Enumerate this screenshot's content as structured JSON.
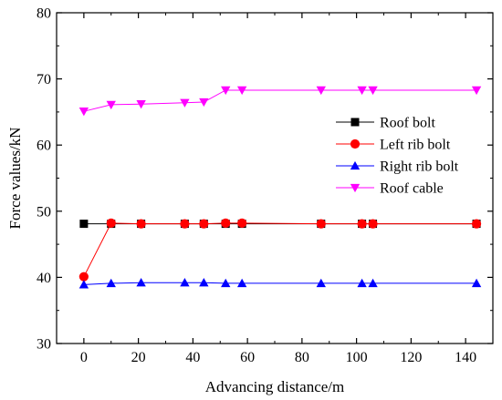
{
  "chart_data": {
    "type": "line",
    "title": "",
    "xlabel": "Advancing distance/m",
    "ylabel": "Force values/kN",
    "xlim": [
      -10,
      150
    ],
    "ylim": [
      30,
      80
    ],
    "xticks": [
      0,
      20,
      40,
      60,
      80,
      100,
      120,
      140
    ],
    "yticks": [
      30,
      40,
      50,
      60,
      70,
      80
    ],
    "grid": false,
    "legend_position": "center-right",
    "series": [
      {
        "name": "Roof bolt",
        "color": "#000000",
        "marker": "square",
        "x": [
          0,
          10,
          21,
          37,
          44,
          52,
          58,
          87,
          102,
          106,
          144
        ],
        "y": [
          48.1,
          48.1,
          48.1,
          48.1,
          48.1,
          48.1,
          48.1,
          48.1,
          48.1,
          48.1,
          48.1
        ]
      },
      {
        "name": "Left rib bolt",
        "color": "#ff0000",
        "marker": "circle",
        "x": [
          0,
          10,
          21,
          37,
          44,
          52,
          58,
          87,
          102,
          106,
          144
        ],
        "y": [
          40.1,
          48.2,
          48.1,
          48.1,
          48.1,
          48.2,
          48.2,
          48.1,
          48.1,
          48.1,
          48.1
        ]
      },
      {
        "name": "Right rib bolt",
        "color": "#0000ff",
        "marker": "triangle-up",
        "x": [
          0,
          10,
          21,
          37,
          44,
          52,
          58,
          87,
          102,
          106,
          144
        ],
        "y": [
          38.9,
          39.1,
          39.2,
          39.2,
          39.2,
          39.1,
          39.1,
          39.1,
          39.1,
          39.1,
          39.1
        ]
      },
      {
        "name": "Roof cable",
        "color": "#ff00ff",
        "marker": "triangle-down",
        "x": [
          0,
          10,
          21,
          37,
          44,
          52,
          58,
          87,
          102,
          106,
          144
        ],
        "y": [
          65.1,
          66.1,
          66.2,
          66.4,
          66.5,
          68.3,
          68.3,
          68.3,
          68.3,
          68.3,
          68.3
        ]
      }
    ]
  }
}
